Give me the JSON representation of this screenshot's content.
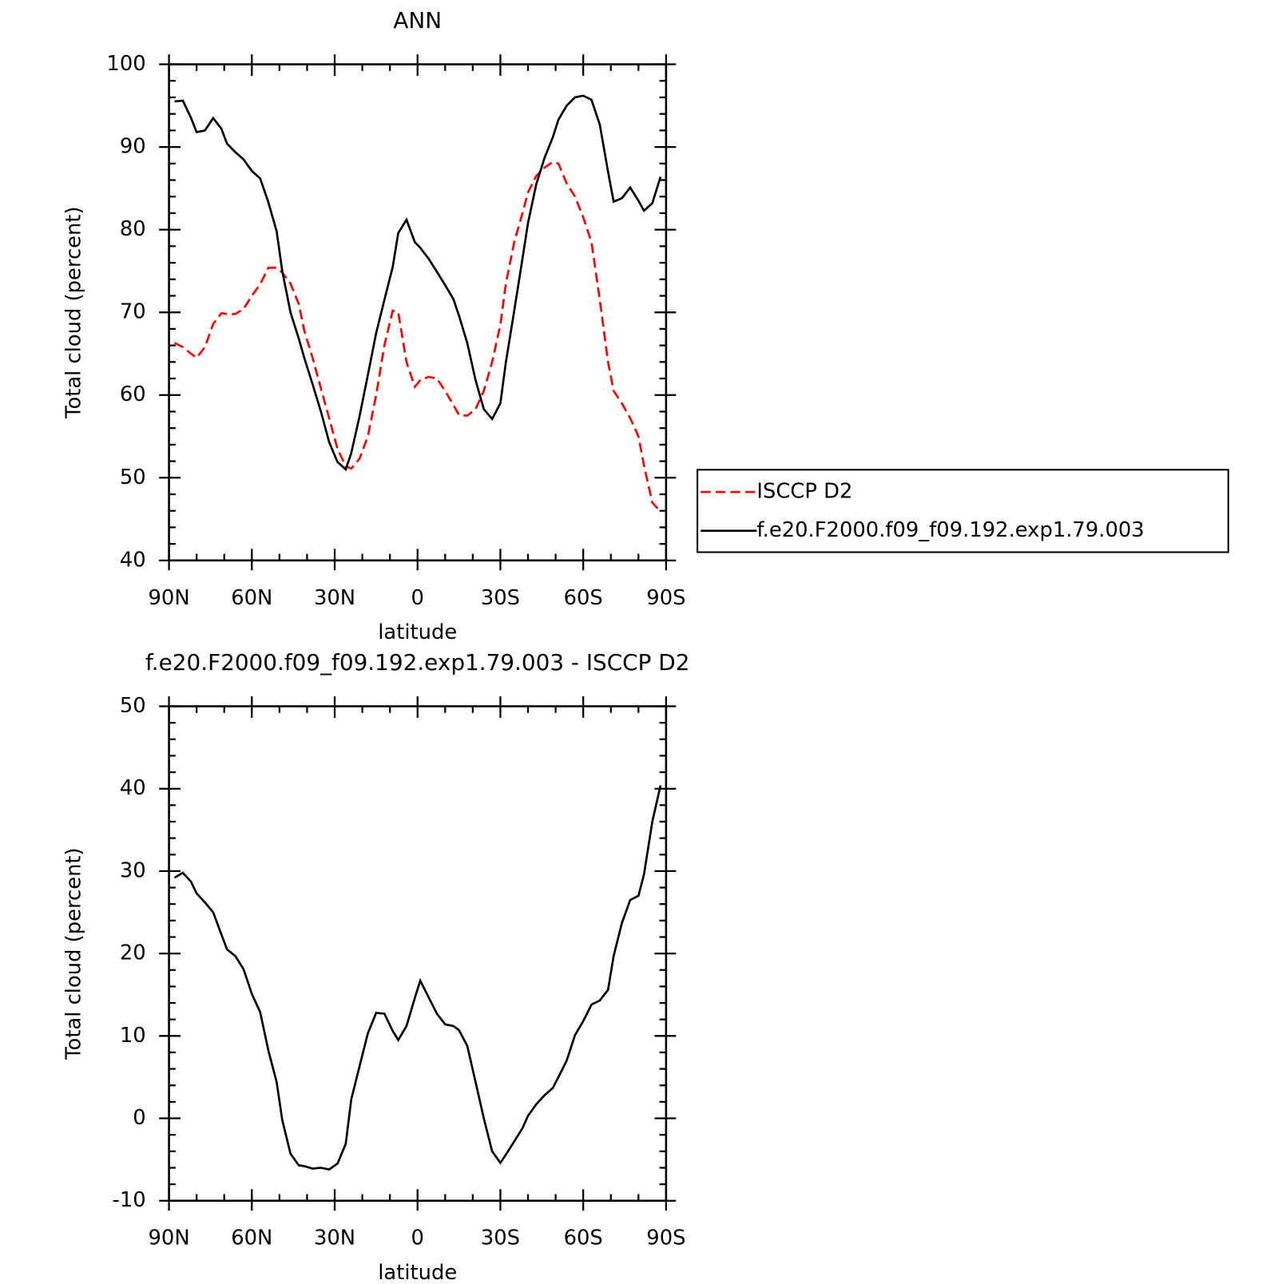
{
  "chart_data": [
    {
      "type": "line",
      "title": "ANN",
      "xlabel": "latitude",
      "ylabel": "Total cloud (percent)",
      "x": [
        88,
        85,
        82,
        80,
        77,
        74,
        71,
        69,
        66,
        63,
        60,
        57,
        54,
        51,
        49,
        46,
        43,
        41,
        38,
        35,
        32,
        29,
        26,
        24,
        21,
        18,
        15,
        12,
        9,
        7,
        4,
        1,
        -1,
        -4,
        -7,
        -10,
        -13,
        -15,
        -18,
        -21,
        -24,
        -27,
        -30,
        -32,
        -35,
        -38,
        -40,
        -43,
        -46,
        -49,
        -51,
        -54,
        -57,
        -60,
        -63,
        -66,
        -69,
        -71,
        -74,
        -77,
        -80,
        -82,
        -85,
        -88
      ],
      "series": [
        {
          "name": "ISCCP D2",
          "color": "#ff0000",
          "linestyle": "dashed",
          "values": [
            66.3,
            65.8,
            65,
            64.5,
            65.8,
            68.6,
            69.9,
            69.8,
            69.8,
            70.4,
            72,
            73.4,
            75.4,
            75.4,
            74.8,
            73.5,
            71,
            67.8,
            64.5,
            60.8,
            57.2,
            53.5,
            51.4,
            51.1,
            52.3,
            55,
            60,
            66,
            70.2,
            70,
            64,
            61,
            61.8,
            62.2,
            62,
            60.5,
            58.8,
            57.6,
            57.5,
            58.3,
            60.5,
            64,
            68.5,
            73.5,
            78.5,
            82,
            84.5,
            86.5,
            87.5,
            88.2,
            88,
            85.6,
            84,
            81.5,
            78.5,
            71.5,
            64,
            60.5,
            59,
            57.2,
            55,
            51.5,
            47,
            45.9
          ]
        },
        {
          "name": "f.e20.F2000.f09_f09.192.exp1.79.003",
          "color": "#000000",
          "linestyle": "solid",
          "values": [
            95.5,
            95.6,
            93.5,
            91.8,
            92,
            93.5,
            92.2,
            90.4,
            89.4,
            88.5,
            87.1,
            86.2,
            83.3,
            79.8,
            75,
            70,
            66.8,
            64.5,
            61.3,
            58,
            54.3,
            51.9,
            51,
            53,
            57.4,
            62.4,
            67.5,
            71.5,
            75.5,
            79.6,
            81.2,
            78.5,
            77.8,
            76.5,
            74.9,
            73.3,
            71.6,
            69.6,
            66.3,
            61.8,
            58.3,
            57.1,
            59,
            64,
            70.2,
            76.5,
            80.8,
            85.5,
            88.7,
            91.2,
            93.3,
            95,
            96,
            96.2,
            95.7,
            92.7,
            87,
            83.4,
            83.8,
            85.1,
            83.5,
            82.3,
            83.2,
            86.4
          ]
        }
      ],
      "xlim": [
        90,
        -90
      ],
      "xticks": [
        {
          "value": 90,
          "label": "90N"
        },
        {
          "value": 60,
          "label": "60N"
        },
        {
          "value": 30,
          "label": "30N"
        },
        0,
        {
          "value": -30,
          "label": "30S"
        },
        {
          "value": -60,
          "label": "60S"
        },
        {
          "value": -90,
          "label": "90S"
        }
      ],
      "ylim": [
        40,
        100
      ],
      "yticks": [
        40,
        50,
        60,
        70,
        80,
        90,
        100
      ],
      "legend": "right"
    },
    {
      "type": "line",
      "title": "f.e20.F2000.f09_f09.192.exp1.79.003 - ISCCP D2",
      "xlabel": "latitude",
      "ylabel": "Total cloud (percent)",
      "x": [
        88,
        85,
        82,
        80,
        77,
        74,
        71,
        69,
        66,
        63,
        60,
        57,
        54,
        51,
        49,
        46,
        43,
        41,
        38,
        35,
        32,
        29,
        26,
        24,
        21,
        18,
        15,
        12,
        9,
        7,
        4,
        1,
        -1,
        -4,
        -7,
        -10,
        -13,
        -15,
        -18,
        -21,
        -24,
        -27,
        -30,
        -32,
        -35,
        -38,
        -40,
        -43,
        -46,
        -49,
        -51,
        -54,
        -57,
        -60,
        -63,
        -66,
        -69,
        -71,
        -74,
        -77,
        -80,
        -82,
        -85,
        -88
      ],
      "series": [
        {
          "color": "#000000",
          "linestyle": "solid",
          "values": [
            29.2,
            29.8,
            28.7,
            27.3,
            26.2,
            25,
            22.3,
            20.5,
            19.7,
            18.1,
            15.1,
            12.9,
            8.2,
            4.4,
            -0.2,
            -4.3,
            -5.7,
            -5.8,
            -6.1,
            -6,
            -6.2,
            -5.5,
            -3.1,
            2.3,
            6.3,
            10.3,
            12.8,
            12.7,
            10.6,
            9.5,
            11.2,
            14.6,
            16.7,
            14.7,
            12.7,
            11.4,
            11.2,
            10.7,
            8.8,
            4.4,
            0,
            -4,
            -5.4,
            -4.4,
            -2.8,
            -1.2,
            0.3,
            1.7,
            2.8,
            3.7,
            5,
            7,
            10.1,
            11.8,
            13.8,
            14.3,
            15.6,
            19.7,
            23.7,
            26.5,
            27,
            29.6,
            36,
            40.4
          ]
        }
      ],
      "xlim": [
        90,
        -90
      ],
      "xticks": [
        {
          "value": 90,
          "label": "90N"
        },
        {
          "value": 60,
          "label": "60N"
        },
        {
          "value": 30,
          "label": "30N"
        },
        0,
        {
          "value": -30,
          "label": "30S"
        },
        {
          "value": -60,
          "label": "60S"
        },
        {
          "value": -90,
          "label": "90S"
        }
      ],
      "ylim": [
        -10,
        50
      ],
      "yticks": [
        -10,
        0,
        10,
        20,
        30,
        40,
        50
      ]
    }
  ]
}
